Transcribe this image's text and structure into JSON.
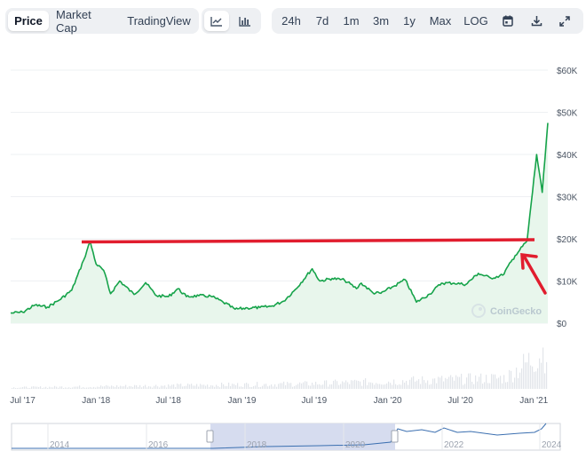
{
  "tabs": {
    "price": "Price",
    "market_cap": "Market Cap",
    "trading_view": "TradingView"
  },
  "chart_type_icons": {
    "line": "line-chart-icon",
    "candle": "candlestick-chart-icon"
  },
  "ranges": [
    "24h",
    "7d",
    "1m",
    "3m",
    "1y",
    "Max",
    "LOG"
  ],
  "tool_icons": {
    "calendar": "calendar-icon",
    "download": "download-icon",
    "expand": "expand-icon"
  },
  "watermark": "CoinGecko",
  "colors": {
    "line": "#16a34a",
    "area": "#e8f6ec",
    "annotation": "#e11d2e",
    "navigator_selection": "#d6dcef"
  },
  "chart_data": {
    "type": "area",
    "y_ticks": [
      "$60K",
      "$50K",
      "$40K",
      "$30K",
      "$20K",
      "$10K",
      "$0"
    ],
    "ylim": [
      0,
      60000
    ],
    "x_ticks": [
      "Jul '17",
      "Jan '18",
      "Jul '18",
      "Jan '19",
      "Jul '19",
      "Jan '20",
      "Jul '20",
      "Jan '21"
    ],
    "x_domain": [
      "2017-06-01",
      "2021-02-05"
    ],
    "series": [
      {
        "x": [
          "2017-06-01",
          "2017-07-01",
          "2017-08-01",
          "2017-09-01",
          "2017-10-01",
          "2017-11-01",
          "2017-12-01",
          "2017-12-17",
          "2018-01-01",
          "2018-01-20",
          "2018-02-06",
          "2018-03-01",
          "2018-04-06",
          "2018-05-05",
          "2018-06-01",
          "2018-07-01",
          "2018-07-25",
          "2018-08-15",
          "2018-09-15",
          "2018-10-15",
          "2018-11-15",
          "2018-12-15",
          "2019-01-15",
          "2019-02-15",
          "2019-03-15",
          "2019-04-15",
          "2019-05-15",
          "2019-06-26",
          "2019-07-15",
          "2019-08-15",
          "2019-09-15",
          "2019-10-15",
          "2019-10-27",
          "2019-11-25",
          "2019-12-15",
          "2020-01-15",
          "2020-02-14",
          "2020-03-13",
          "2020-04-15",
          "2020-05-15",
          "2020-06-15",
          "2020-07-15",
          "2020-08-15",
          "2020-09-15",
          "2020-10-15",
          "2020-11-15",
          "2020-12-15",
          "2021-01-08",
          "2021-01-22",
          "2021-02-05"
        ],
        "y": [
          2400,
          2600,
          4300,
          3800,
          5500,
          7800,
          15000,
          19400,
          14000,
          12500,
          7000,
          10000,
          6800,
          9600,
          6500,
          6300,
          8200,
          6300,
          6500,
          6400,
          5000,
          3300,
          3600,
          3700,
          4000,
          5200,
          8000,
          12900,
          10000,
          10600,
          10200,
          8200,
          9500,
          7200,
          7100,
          8700,
          10300,
          5000,
          6900,
          9500,
          9500,
          9200,
          11800,
          10700,
          11400,
          16000,
          19500,
          40000,
          31000,
          47500
        ]
      }
    ]
  }
}
